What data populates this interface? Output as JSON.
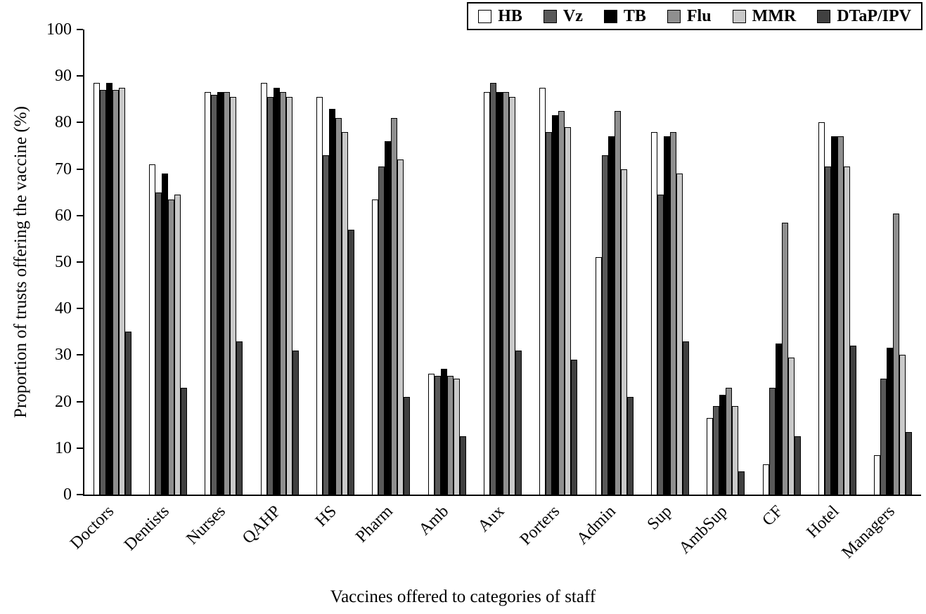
{
  "chart_data": {
    "type": "bar",
    "title": "",
    "xlabel": "Vaccines offered to categories of staff",
    "ylabel": "Proportion of trusts offering the vaccine (%)",
    "ylim": [
      0,
      100
    ],
    "yticks": [
      0,
      10,
      20,
      30,
      40,
      50,
      60,
      70,
      80,
      90,
      100
    ],
    "grid": false,
    "legend_position": "top-right",
    "axis_color": "#000000",
    "background_color": "#ffffff",
    "categories": [
      "Doctors",
      "Dentists",
      "Nurses",
      "QAHP",
      "HS",
      "Pharm",
      "Amb",
      "Aux",
      "Porters",
      "Admin",
      "Sup",
      "AmbSup",
      "CF",
      "Hotel",
      "Managers"
    ],
    "series": [
      {
        "name": "HB",
        "color": "#ffffff",
        "values": [
          88.5,
          71,
          86.5,
          88.5,
          85.5,
          63.5,
          26,
          86.5,
          87.5,
          51,
          78,
          16.5,
          6.5,
          80,
          8.5
        ]
      },
      {
        "name": "Vz",
        "color": "#595959",
        "values": [
          87,
          65,
          86,
          85.5,
          73,
          70.5,
          25.5,
          88.5,
          78,
          73,
          64.5,
          19,
          23,
          70.5,
          25
        ]
      },
      {
        "name": "TB",
        "color": "#000000",
        "values": [
          88.5,
          69,
          86.5,
          87.5,
          83,
          76,
          27,
          86.5,
          81.5,
          77,
          77,
          21.5,
          32.5,
          77,
          31.5
        ]
      },
      {
        "name": "Flu",
        "color": "#8f8f8f",
        "values": [
          87,
          63.5,
          86.5,
          86.5,
          81,
          81,
          25.5,
          86.5,
          82.5,
          82.5,
          78,
          23,
          58.5,
          77,
          60.5
        ]
      },
      {
        "name": "MMR",
        "color": "#c9c9c9",
        "values": [
          87.5,
          64.5,
          85.5,
          85.5,
          78,
          72,
          25,
          85.5,
          79,
          70,
          69,
          19,
          29.5,
          70.5,
          30
        ]
      },
      {
        "name": "DTaP/IPV",
        "color": "#404040",
        "values": [
          35,
          23,
          33,
          31,
          57,
          21,
          12.5,
          31,
          29,
          21,
          33,
          5,
          12.5,
          32,
          13.5
        ]
      }
    ]
  }
}
